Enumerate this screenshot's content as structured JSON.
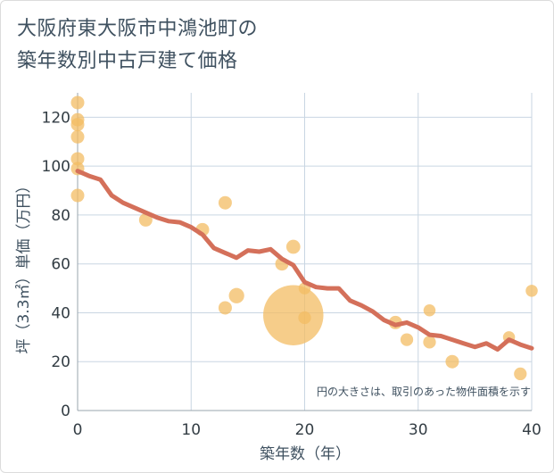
{
  "title_line1": "大阪府東大阪市中鴻池町の",
  "title_line2": "築年数別中古戸建て価格",
  "colors": {
    "line": "#d4705a",
    "bubble": "#f3bc63",
    "grid": "#c9d6e2",
    "text": "#3f5160"
  },
  "chart_data": {
    "type": "scatter",
    "title": "大阪府東大阪市中鴻池町の築年数別中古戸建て価格",
    "xlabel": "築年数（年）",
    "ylabel": "坪（3.3㎡）単価（万円）",
    "xlim": [
      0,
      40
    ],
    "ylim": [
      0,
      130
    ],
    "x_ticks": [
      0,
      10,
      20,
      30,
      40
    ],
    "y_ticks": [
      0,
      20,
      40,
      60,
      80,
      100,
      120
    ],
    "grid": true,
    "annotation": "円の大きさは、取引のあった物件面積を示す",
    "points": [
      {
        "x": 0,
        "y": 126,
        "size": 1
      },
      {
        "x": 0,
        "y": 119,
        "size": 1
      },
      {
        "x": 0,
        "y": 117,
        "size": 1
      },
      {
        "x": 0,
        "y": 112,
        "size": 1
      },
      {
        "x": 0,
        "y": 103,
        "size": 1
      },
      {
        "x": 0,
        "y": 99,
        "size": 1
      },
      {
        "x": 0,
        "y": 88,
        "size": 1
      },
      {
        "x": 6,
        "y": 78,
        "size": 1
      },
      {
        "x": 11,
        "y": 74,
        "size": 1
      },
      {
        "x": 13,
        "y": 85,
        "size": 1
      },
      {
        "x": 13,
        "y": 42,
        "size": 1
      },
      {
        "x": 14,
        "y": 47,
        "size": 1.15
      },
      {
        "x": 18,
        "y": 60,
        "size": 1
      },
      {
        "x": 19,
        "y": 67,
        "size": 1.05
      },
      {
        "x": 19,
        "y": 39,
        "size": 4.5
      },
      {
        "x": 20,
        "y": 50,
        "size": 0.9
      },
      {
        "x": 20,
        "y": 38,
        "size": 0.95
      },
      {
        "x": 28,
        "y": 36,
        "size": 1
      },
      {
        "x": 29,
        "y": 29,
        "size": 0.95
      },
      {
        "x": 31,
        "y": 41,
        "size": 0.9
      },
      {
        "x": 31,
        "y": 28,
        "size": 0.95
      },
      {
        "x": 33,
        "y": 20,
        "size": 1
      },
      {
        "x": 38,
        "y": 30,
        "size": 0.9
      },
      {
        "x": 39,
        "y": 15,
        "size": 0.95
      },
      {
        "x": 40,
        "y": 49,
        "size": 0.9
      }
    ],
    "series": [
      {
        "x": [
          0,
          1,
          2,
          3,
          4,
          5,
          6,
          7,
          8,
          9,
          10,
          11,
          12,
          13,
          14,
          15,
          16,
          17,
          18,
          19,
          20,
          21,
          22,
          23,
          24,
          25,
          26,
          27,
          28,
          29,
          30,
          31,
          32,
          33,
          34,
          35,
          36,
          37,
          38,
          39,
          40
        ],
        "y": [
          98,
          96,
          94.5,
          88,
          85,
          83,
          81,
          79,
          77.5,
          77,
          75,
          72,
          66.5,
          64.5,
          62.5,
          65.5,
          65,
          66,
          62,
          59.5,
          52.5,
          50.5,
          50,
          50,
          45,
          43,
          40.5,
          37,
          35,
          36,
          34,
          31,
          30.5,
          29,
          27.5,
          26,
          27.5,
          25,
          29,
          27,
          25.5
        ]
      }
    ]
  }
}
